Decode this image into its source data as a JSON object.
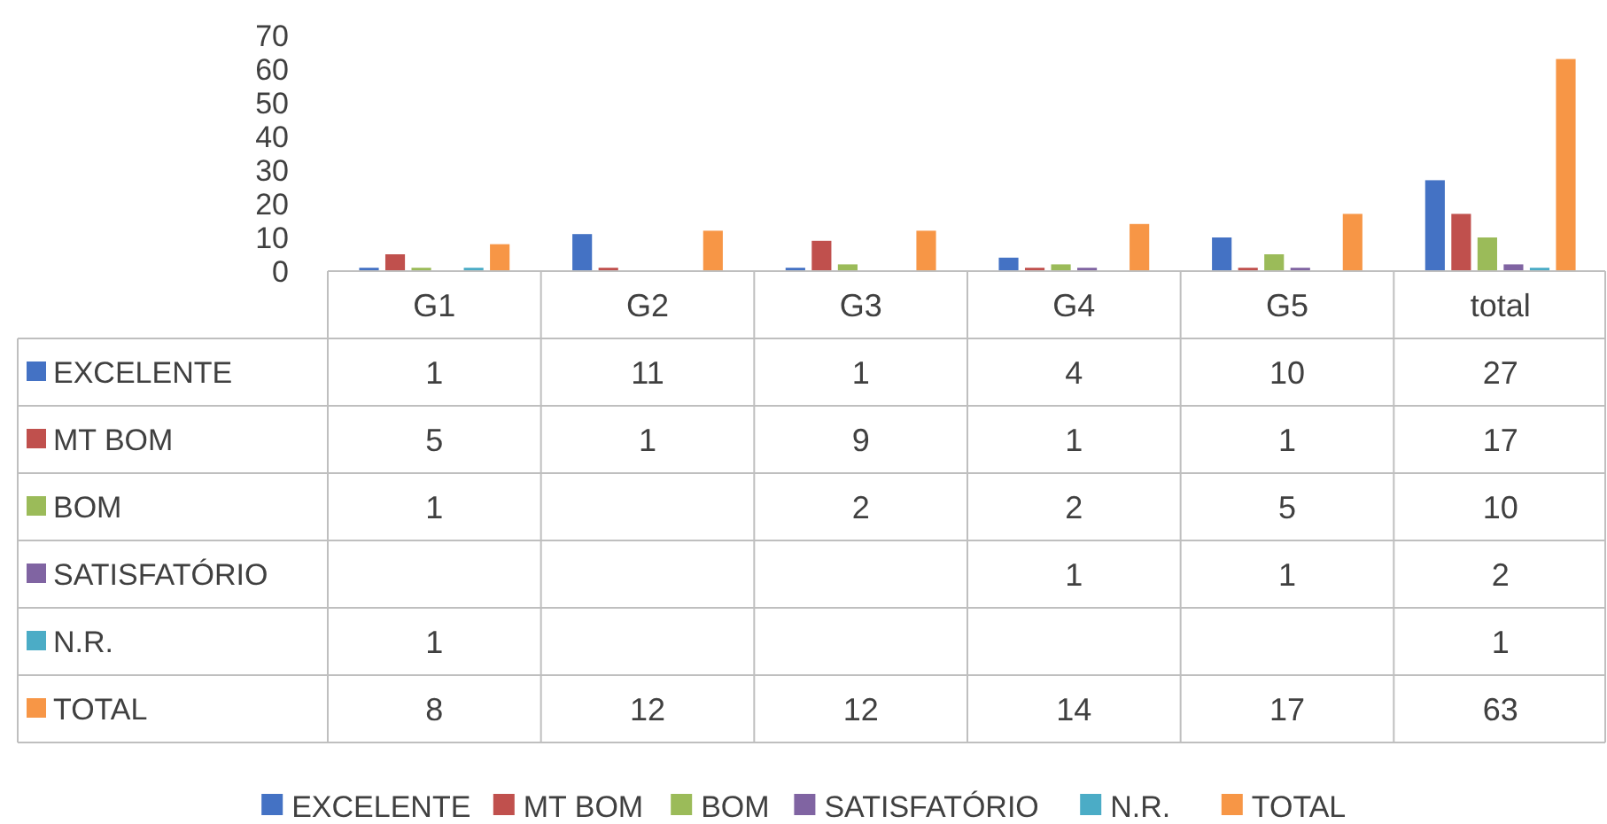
{
  "chart_data": {
    "type": "bar",
    "categories": [
      "G1",
      "G2",
      "G3",
      "G4",
      "G5",
      "total"
    ],
    "series": [
      {
        "name": "EXCELENTE",
        "color": "#4472c4",
        "values": [
          1,
          11,
          1,
          4,
          10,
          27
        ]
      },
      {
        "name": "MT BOM",
        "color": "#c0504d",
        "values": [
          5,
          1,
          9,
          1,
          1,
          17
        ]
      },
      {
        "name": "BOM",
        "color": "#9bbb59",
        "values": [
          1,
          null,
          2,
          2,
          5,
          10
        ]
      },
      {
        "name": "SATISFATÓRIO",
        "color": "#8064a2",
        "values": [
          null,
          null,
          null,
          1,
          1,
          2
        ]
      },
      {
        "name": "N.R.",
        "color": "#4bacc6",
        "values": [
          1,
          null,
          null,
          null,
          null,
          1
        ]
      },
      {
        "name": "TOTAL",
        "color": "#f79646",
        "values": [
          8,
          12,
          12,
          14,
          17,
          63
        ]
      }
    ],
    "ylim": [
      0,
      70
    ],
    "yticks": [
      0,
      10,
      20,
      30,
      40,
      50,
      60,
      70
    ],
    "grid": false,
    "data_labels": true,
    "legend": "bottom"
  }
}
